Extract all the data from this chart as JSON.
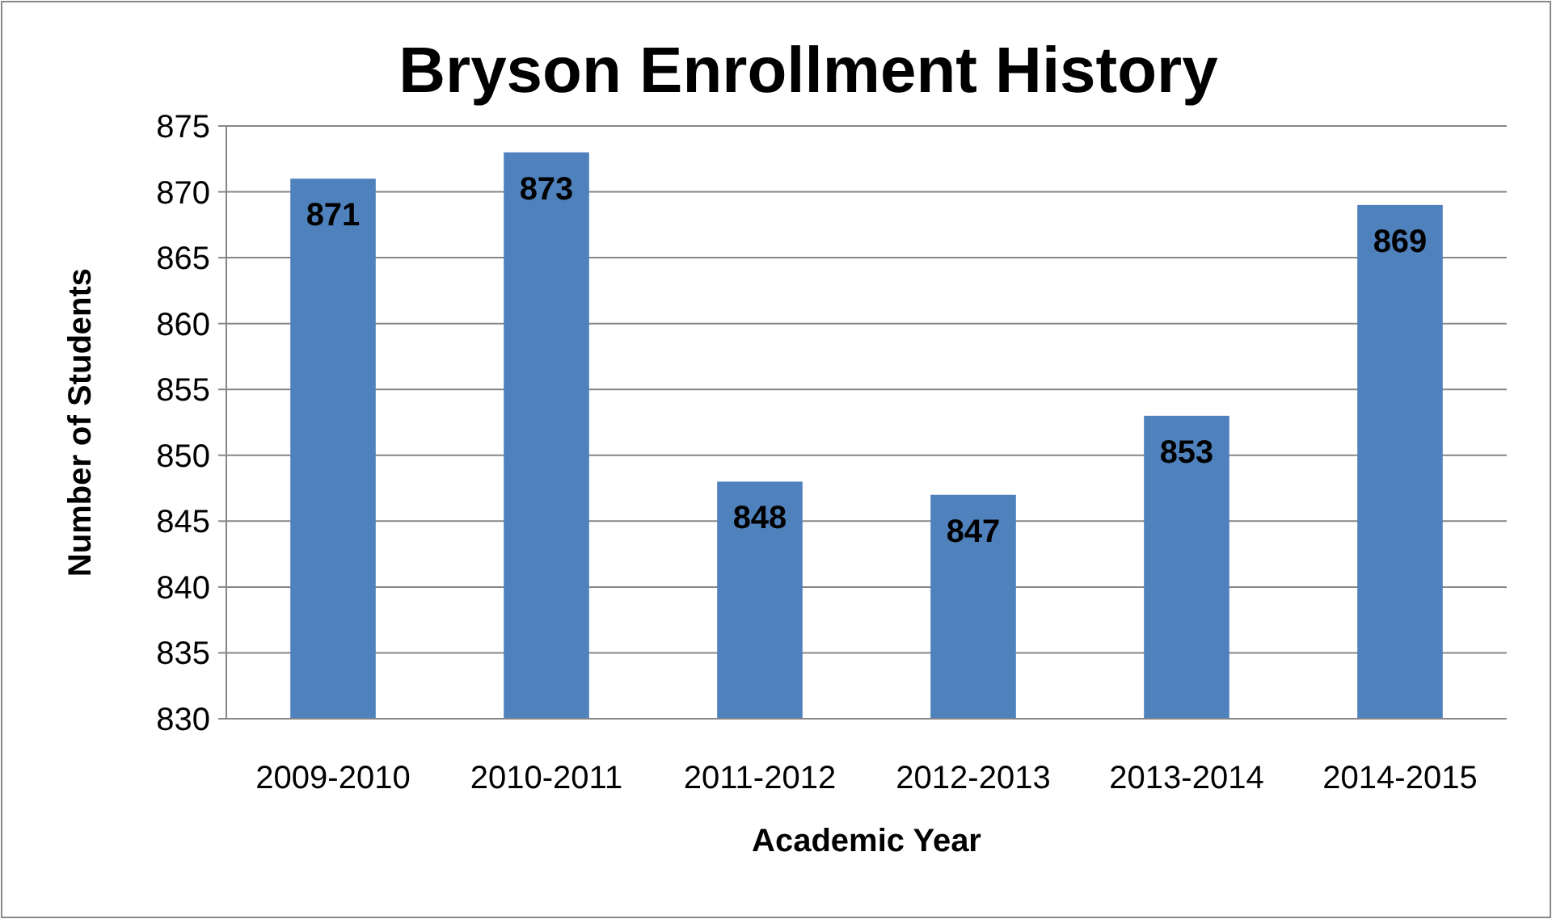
{
  "chart_data": {
    "type": "bar",
    "title": "Bryson Enrollment History",
    "xlabel": "Academic Year",
    "ylabel": "Number of Students",
    "categories": [
      "2009-2010",
      "2010-2011",
      "2011-2012",
      "2012-2013",
      "2013-2014",
      "2014-2015"
    ],
    "values": [
      871,
      873,
      848,
      847,
      853,
      869
    ],
    "color": "#4f81bd",
    "ylim": [
      830,
      875
    ],
    "yticks": [
      830,
      835,
      840,
      845,
      850,
      855,
      860,
      865,
      870,
      875
    ],
    "grid": "y",
    "data_labels": true
  }
}
